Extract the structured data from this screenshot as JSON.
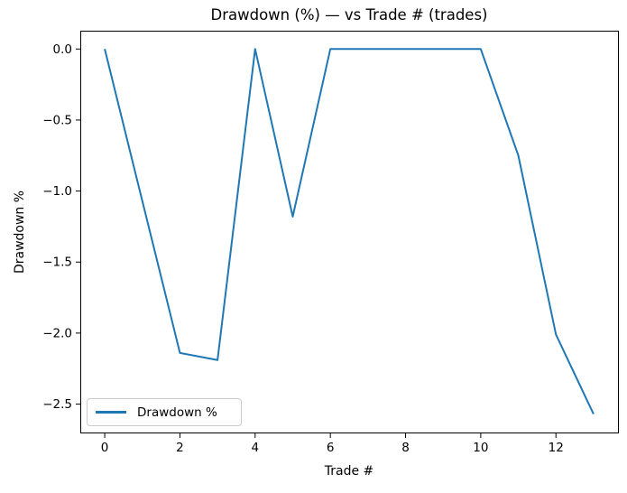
{
  "chart_data": {
    "type": "line",
    "title": "Drawdown (%) — vs Trade # (trades)",
    "xlabel": "Trade #",
    "ylabel": "Drawdown %",
    "legend": {
      "entries": [
        "Drawdown %"
      ],
      "position": "lower left"
    },
    "x": [
      0,
      1,
      2,
      3,
      4,
      5,
      6,
      7,
      8,
      9,
      10,
      11,
      12,
      13
    ],
    "series": [
      {
        "name": "Drawdown %",
        "color": "#1f77b4",
        "values": [
          0.0,
          -1.07,
          -2.14,
          -2.19,
          0.0,
          -1.18,
          0.0,
          0.0,
          0.0,
          0.0,
          0.0,
          -0.75,
          -2.01,
          -2.57
        ]
      }
    ],
    "xlim": [
      -0.65,
      13.65
    ],
    "ylim": [
      -2.7,
      0.129
    ],
    "x_ticks": [
      0,
      2,
      4,
      6,
      8,
      10,
      12
    ],
    "y_ticks": [
      0.0,
      -0.5,
      -1.0,
      -1.5,
      -2.0,
      -2.5
    ],
    "x_tick_labels": [
      "0",
      "2",
      "4",
      "6",
      "8",
      "10",
      "12"
    ],
    "y_tick_labels": [
      "0.0",
      "−0.5",
      "−1.0",
      "−1.5",
      "−2.0",
      "−2.5"
    ],
    "grid": false,
    "background": "#ffffff",
    "axes_color": "#000000"
  }
}
